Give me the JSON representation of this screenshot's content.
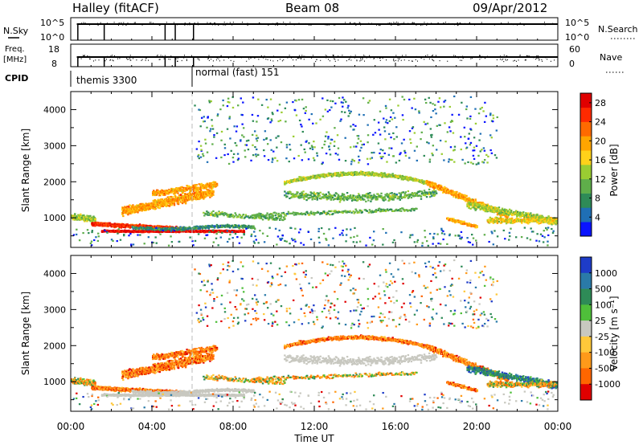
{
  "header": {
    "title": "Halley (fitACF)",
    "beam": "Beam 08",
    "date": "09/Apr/2012"
  },
  "top_panels": {
    "nsky": {
      "label": "N.Sky",
      "ticks": [
        "10^5",
        "10^0"
      ]
    },
    "nsearch": {
      "label": "N.Search",
      "ticks": [
        "10^5",
        "10^0"
      ]
    },
    "freq": {
      "label_line1": "Freq.",
      "label_line2": "[MHz]",
      "ticks": [
        "18",
        "8"
      ]
    },
    "nave": {
      "label": "Nave",
      "ticks": [
        "60",
        "0"
      ]
    },
    "cpid": {
      "label": "CPID",
      "modes": [
        {
          "name": "themis 3300",
          "start_hour": 0.0
        },
        {
          "name": "normal (fast) 151",
          "start_hour": 6.0
        }
      ]
    },
    "scan_markers_hours": [
      0.35,
      1.65,
      4.65,
      5.15,
      6.05
    ]
  },
  "chart_data": [
    {
      "type": "heatmap",
      "name": "power",
      "ylabel": "Slant Range [km]",
      "xlabel": "",
      "xlim": [
        0,
        24
      ],
      "ylim": [
        180,
        4500
      ],
      "yticks": [
        "1000",
        "2000",
        "3000",
        "4000"
      ],
      "colorbar": {
        "label": "Power [dB]",
        "ticks": [
          "4",
          "8",
          "12",
          "16",
          "20",
          "24",
          "28"
        ],
        "range": [
          0,
          30
        ],
        "colors": [
          "#0a14ff",
          "#1f6fb5",
          "#2e8b57",
          "#5fae4a",
          "#9acd32",
          "#ffd21a",
          "#ffa500",
          "#ff6a00",
          "#ff2a00",
          "#e00000"
        ]
      }
    },
    {
      "type": "heatmap",
      "name": "velocity",
      "ylabel": "Slant Range [km]",
      "xlabel": "Time UT",
      "xlim": [
        0,
        24
      ],
      "ylim": [
        180,
        4500
      ],
      "xticks": [
        "00:00",
        "04:00",
        "08:00",
        "12:00",
        "16:00",
        "20:00",
        "00:00"
      ],
      "yticks": [
        "1000",
        "2000",
        "3000",
        "4000"
      ],
      "colorbar": {
        "label": "Velocity [m s⁻¹]",
        "ticks": [
          "1000",
          "500",
          "100",
          "25",
          "-25",
          "-100",
          "-500",
          "-1000"
        ],
        "colors": [
          "#1e3cc8",
          "#2a7aa8",
          "#2e8b57",
          "#4fbf3a",
          "#c8c8c0",
          "#ffc83a",
          "#ff9a1a",
          "#ff6600",
          "#e00000"
        ]
      }
    }
  ],
  "colors": {
    "axis": "#000000",
    "ground_scatter": "#c8c8c0",
    "grid_dash": "#bbbbbb"
  }
}
